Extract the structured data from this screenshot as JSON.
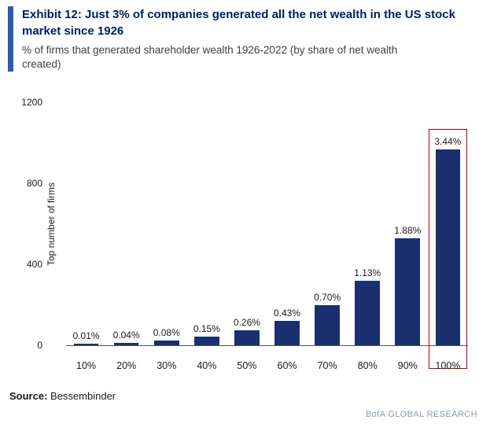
{
  "header": {
    "title": "Exhibit 12: Just 3% of companies generated all the net wealth in the US stock market since 1926",
    "subtitle": "% of firms that generated shareholder wealth 1926-2022 (by share of net wealth created)"
  },
  "chart_data": {
    "type": "bar",
    "title": "",
    "xlabel": "",
    "ylabel": "Top number of firms",
    "categories": [
      "10%",
      "20%",
      "30%",
      "40%",
      "50%",
      "60%",
      "70%",
      "80%",
      "90%",
      "100%"
    ],
    "values": [
      3,
      11,
      23,
      42,
      73,
      121,
      197,
      318,
      528,
      967
    ],
    "value_labels": [
      "0.01%",
      "0.04%",
      "0.08%",
      "0.15%",
      "0.26%",
      "0.43%",
      "0.70%",
      "1.13%",
      "1.88%",
      "3.44%"
    ],
    "ylim": [
      0,
      1200
    ],
    "yticks": [
      0,
      400,
      800,
      1200
    ],
    "grid": false,
    "legend": false,
    "bar_color": "#1b2f6e",
    "highlight_index": 9,
    "highlight_box_color": "#c00000"
  },
  "footer": {
    "source_label": "Source:",
    "source_value": "Bessembinder",
    "brand": "BofA GLOBAL RESEARCH"
  }
}
